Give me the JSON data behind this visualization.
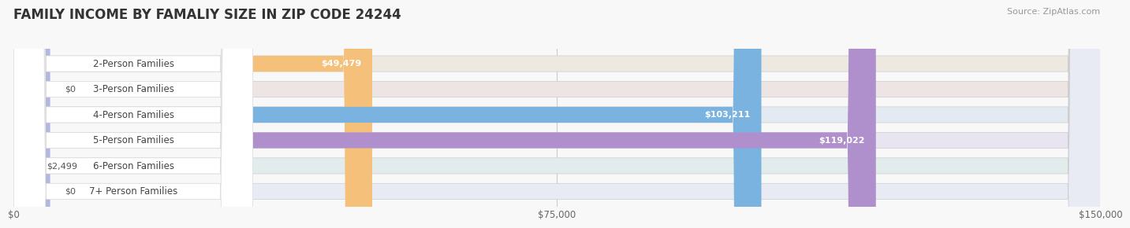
{
  "title": "FAMILY INCOME BY FAMALIY SIZE IN ZIP CODE 24244",
  "source": "Source: ZipAtlas.com",
  "categories": [
    "2-Person Families",
    "3-Person Families",
    "4-Person Families",
    "5-Person Families",
    "6-Person Families",
    "7+ Person Families"
  ],
  "values": [
    49479,
    0,
    103211,
    119022,
    2499,
    0
  ],
  "labels": [
    "$49,479",
    "$0",
    "$103,211",
    "$119,022",
    "$2,499",
    "$0"
  ],
  "bar_colors": [
    "#f5c07a",
    "#f0a0a8",
    "#7ab3e0",
    "#b090cc",
    "#6ec8c0",
    "#b0b8e0"
  ],
  "bg_colors": [
    "#ede8e0",
    "#ede4e4",
    "#e4eaf2",
    "#e8e4f0",
    "#e2eced",
    "#e8eaf4"
  ],
  "pill_colors": [
    "#f5c07a",
    "#f0a0a8",
    "#7ab3e0",
    "#b090cc",
    "#6ec8c0",
    "#b0b8e0"
  ],
  "xlim": [
    0,
    150000
  ],
  "xticks": [
    0,
    75000,
    150000
  ],
  "xticklabels": [
    "$0",
    "$75,000",
    "$150,000"
  ],
  "label_inside_threshold": 10000,
  "title_fontsize": 12,
  "source_fontsize": 8,
  "bar_label_fontsize": 8,
  "cat_label_fontsize": 8.5,
  "background_color": "#f8f8f8"
}
